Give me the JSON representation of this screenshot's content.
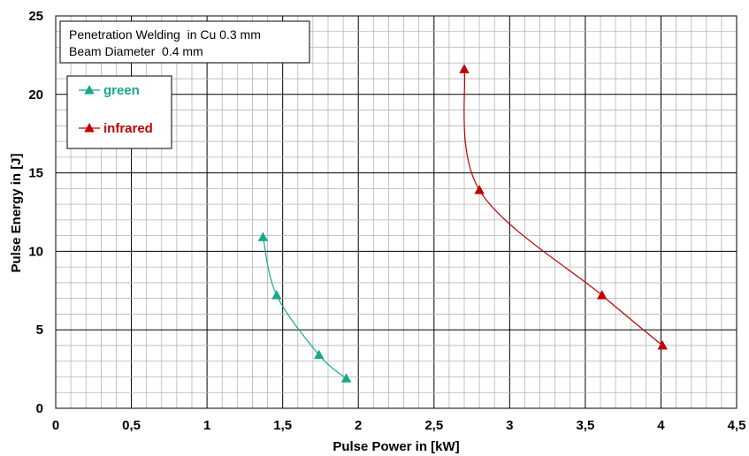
{
  "chart_data": {
    "type": "scatter",
    "xlabel": "Pulse Power in [kW]",
    "ylabel": "Pulse Energy in [J]",
    "xlim": [
      0,
      4.5
    ],
    "ylim": [
      0,
      25
    ],
    "x_major_step": 0.5,
    "y_major_step": 5,
    "x_tick_labels": [
      "0",
      "0,5",
      "1",
      "1,5",
      "2",
      "2,5",
      "3",
      "3,5",
      "4",
      "4,5"
    ],
    "y_tick_labels": [
      "0",
      "5",
      "10",
      "15",
      "20",
      "25"
    ],
    "grid": "major and minor",
    "annotation": [
      "Penetration Welding  in Cu 0.3 mm",
      "Beam Diameter  0.4 mm"
    ],
    "legend_position": "top-left",
    "series": [
      {
        "name": "green",
        "color": "#1aa88a",
        "marker": "triangle",
        "x": [
          1.37,
          1.46,
          1.74,
          1.92
        ],
        "y": [
          10.9,
          7.2,
          3.4,
          1.9
        ]
      },
      {
        "name": "infrared",
        "color": "#c00000",
        "marker": "triangle",
        "x": [
          2.7,
          2.8,
          3.61,
          4.01
        ],
        "y": [
          21.6,
          13.9,
          7.2,
          4.0
        ]
      }
    ]
  }
}
